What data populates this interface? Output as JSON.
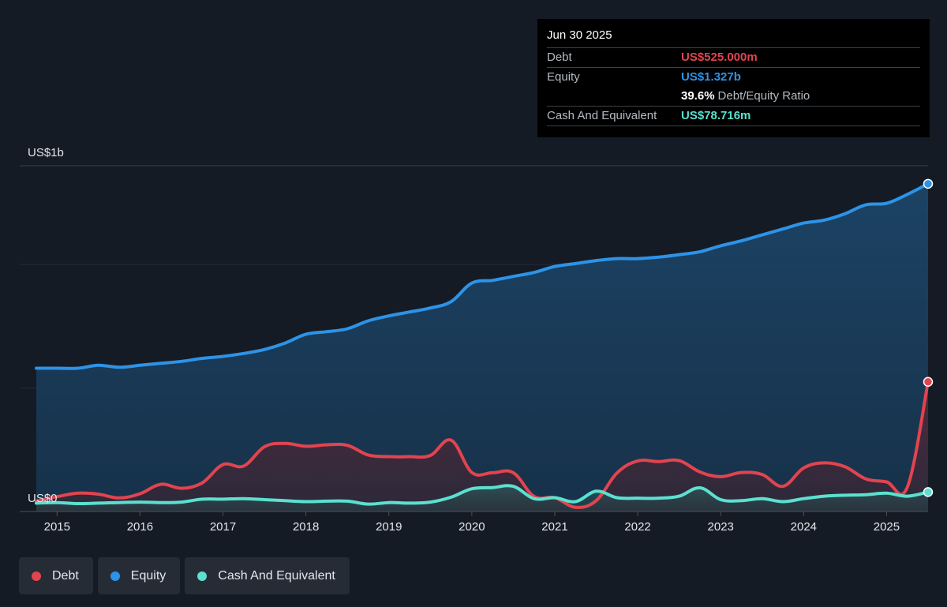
{
  "tooltip": {
    "date": "Jun 30 2025",
    "rows": [
      {
        "label": "Debt",
        "value": "US$525.000m"
      },
      {
        "label": "Equity",
        "value": "US$1.327b"
      },
      {
        "ratio_value": "39.6%",
        "ratio_label": "Debt/Equity Ratio"
      },
      {
        "label": "Cash And Equivalent",
        "value": "US$78.716m"
      }
    ]
  },
  "legend": [
    {
      "label": "Debt",
      "color": "#e2444f"
    },
    {
      "label": "Equity",
      "color": "#2d93e8"
    },
    {
      "label": "Cash And Equivalent",
      "color": "#5ce0cf"
    }
  ],
  "chart_data": {
    "type": "area",
    "title": "",
    "xlabel": "",
    "ylabel": "",
    "ylim": [
      0,
      1400
    ],
    "y_tick_labels": [
      {
        "value": 1400,
        "label": "US$1b"
      },
      {
        "value": 0,
        "label": "US$0"
      }
    ],
    "x_ticks": [
      2015,
      2016,
      2017,
      2018,
      2019,
      2020,
      2021,
      2022,
      2023,
      2024,
      2025
    ],
    "xlim": [
      2014.55,
      2025.5
    ],
    "series": [
      {
        "name": "Debt",
        "color": "#e2444f",
        "points": [
          [
            2014.75,
            42
          ],
          [
            2015.0,
            60
          ],
          [
            2015.25,
            74
          ],
          [
            2015.5,
            70
          ],
          [
            2015.75,
            55
          ],
          [
            2016.0,
            72
          ],
          [
            2016.25,
            110
          ],
          [
            2016.5,
            94
          ],
          [
            2016.75,
            116
          ],
          [
            2017.0,
            190
          ],
          [
            2017.25,
            184
          ],
          [
            2017.5,
            262
          ],
          [
            2017.75,
            276
          ],
          [
            2018.0,
            264
          ],
          [
            2018.25,
            270
          ],
          [
            2018.5,
            268
          ],
          [
            2018.75,
            229
          ],
          [
            2019.0,
            222
          ],
          [
            2019.25,
            222
          ],
          [
            2019.5,
            227
          ],
          [
            2019.75,
            289
          ],
          [
            2020.0,
            158
          ],
          [
            2020.25,
            157
          ],
          [
            2020.5,
            157
          ],
          [
            2020.75,
            61
          ],
          [
            2021.0,
            56
          ],
          [
            2021.25,
            17
          ],
          [
            2021.5,
            44
          ],
          [
            2021.75,
            156
          ],
          [
            2022.0,
            205
          ],
          [
            2022.25,
            202
          ],
          [
            2022.5,
            206
          ],
          [
            2022.75,
            160
          ],
          [
            2023.0,
            141
          ],
          [
            2023.25,
            158
          ],
          [
            2023.5,
            150
          ],
          [
            2023.75,
            102
          ],
          [
            2024.0,
            176
          ],
          [
            2024.25,
            197
          ],
          [
            2024.5,
            181
          ],
          [
            2024.75,
            132
          ],
          [
            2025.0,
            120
          ],
          [
            2025.25,
            98
          ],
          [
            2025.5,
            525
          ]
        ]
      },
      {
        "name": "Equity",
        "color": "#2d93e8",
        "points": [
          [
            2014.75,
            580
          ],
          [
            2015.0,
            580
          ],
          [
            2015.25,
            580
          ],
          [
            2015.5,
            592
          ],
          [
            2015.75,
            584
          ],
          [
            2016.0,
            592
          ],
          [
            2016.25,
            600
          ],
          [
            2016.5,
            608
          ],
          [
            2016.75,
            620
          ],
          [
            2017.0,
            628
          ],
          [
            2017.25,
            640
          ],
          [
            2017.5,
            656
          ],
          [
            2017.75,
            682
          ],
          [
            2018.0,
            718
          ],
          [
            2018.25,
            728
          ],
          [
            2018.5,
            740
          ],
          [
            2018.75,
            772
          ],
          [
            2019.0,
            792
          ],
          [
            2019.25,
            808
          ],
          [
            2019.5,
            824
          ],
          [
            2019.75,
            850
          ],
          [
            2020.0,
            925
          ],
          [
            2020.25,
            936
          ],
          [
            2020.5,
            952
          ],
          [
            2020.75,
            968
          ],
          [
            2021.0,
            992
          ],
          [
            2021.25,
            1004
          ],
          [
            2021.5,
            1016
          ],
          [
            2021.75,
            1024
          ],
          [
            2022.0,
            1024
          ],
          [
            2022.25,
            1030
          ],
          [
            2022.5,
            1040
          ],
          [
            2022.75,
            1052
          ],
          [
            2023.0,
            1076
          ],
          [
            2023.25,
            1096
          ],
          [
            2023.5,
            1120
          ],
          [
            2023.75,
            1144
          ],
          [
            2024.0,
            1168
          ],
          [
            2024.25,
            1180
          ],
          [
            2024.5,
            1206
          ],
          [
            2024.75,
            1242
          ],
          [
            2025.0,
            1248
          ],
          [
            2025.25,
            1284
          ],
          [
            2025.5,
            1327
          ]
        ]
      },
      {
        "name": "Cash And Equivalent",
        "color": "#5ce0cf",
        "points": [
          [
            2014.75,
            34
          ],
          [
            2015.0,
            36
          ],
          [
            2015.25,
            32
          ],
          [
            2015.5,
            34
          ],
          [
            2015.75,
            36
          ],
          [
            2016.0,
            38
          ],
          [
            2016.25,
            36
          ],
          [
            2016.5,
            38
          ],
          [
            2016.75,
            50
          ],
          [
            2017.0,
            50
          ],
          [
            2017.25,
            52
          ],
          [
            2017.5,
            48
          ],
          [
            2017.75,
            44
          ],
          [
            2018.0,
            40
          ],
          [
            2018.25,
            42
          ],
          [
            2018.5,
            42
          ],
          [
            2018.75,
            30
          ],
          [
            2019.0,
            36
          ],
          [
            2019.25,
            34
          ],
          [
            2019.5,
            38
          ],
          [
            2019.75,
            58
          ],
          [
            2020.0,
            92
          ],
          [
            2020.25,
            97
          ],
          [
            2020.5,
            102
          ],
          [
            2020.75,
            52
          ],
          [
            2021.0,
            56
          ],
          [
            2021.25,
            40
          ],
          [
            2021.5,
            82
          ],
          [
            2021.75,
            56
          ],
          [
            2022.0,
            54
          ],
          [
            2022.25,
            54
          ],
          [
            2022.5,
            62
          ],
          [
            2022.75,
            96
          ],
          [
            2023.0,
            48
          ],
          [
            2023.25,
            44
          ],
          [
            2023.5,
            52
          ],
          [
            2023.75,
            40
          ],
          [
            2024.0,
            52
          ],
          [
            2024.25,
            62
          ],
          [
            2024.5,
            66
          ],
          [
            2024.75,
            68
          ],
          [
            2025.0,
            74
          ],
          [
            2025.25,
            62
          ],
          [
            2025.5,
            78.716
          ]
        ]
      }
    ]
  }
}
